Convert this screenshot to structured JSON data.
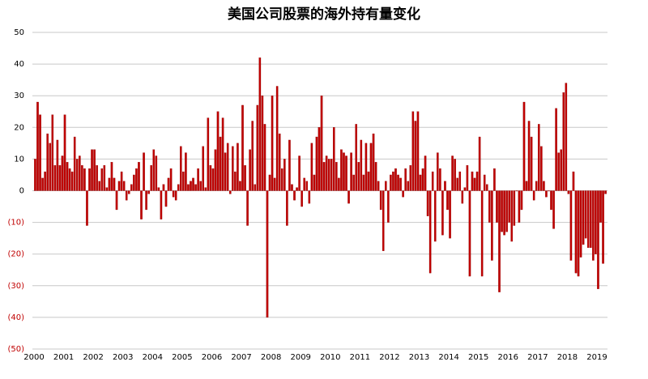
{
  "chart_data": {
    "type": "bar",
    "title": "美国公司股票的海外持有量变化",
    "categories": [
      "2000",
      null,
      null,
      null,
      null,
      null,
      null,
      null,
      null,
      null,
      null,
      null,
      "2001",
      null,
      null,
      null,
      null,
      null,
      null,
      null,
      null,
      null,
      null,
      null,
      "2002",
      null,
      null,
      null,
      null,
      null,
      null,
      null,
      null,
      null,
      null,
      null,
      "2003",
      null,
      null,
      null,
      null,
      null,
      null,
      null,
      null,
      null,
      null,
      null,
      "2004",
      null,
      null,
      null,
      null,
      null,
      null,
      null,
      null,
      null,
      null,
      null,
      "2005",
      null,
      null,
      null,
      null,
      null,
      null,
      null,
      null,
      null,
      null,
      null,
      "2006",
      null,
      null,
      null,
      null,
      null,
      null,
      null,
      null,
      null,
      null,
      null,
      "2007",
      null,
      null,
      null,
      null,
      null,
      null,
      null,
      null,
      null,
      null,
      null,
      "2008",
      null,
      null,
      null,
      null,
      null,
      null,
      null,
      null,
      null,
      null,
      null,
      "2009",
      null,
      null,
      null,
      null,
      null,
      null,
      null,
      null,
      null,
      null,
      null,
      "2010",
      null,
      null,
      null,
      null,
      null,
      null,
      null,
      null,
      null,
      null,
      null,
      "2011",
      null,
      null,
      null,
      null,
      null,
      null,
      null,
      null,
      null,
      null,
      null,
      "2012",
      null,
      null,
      null,
      null,
      null,
      null,
      null,
      null,
      null,
      null,
      null,
      "2013",
      null,
      null,
      null,
      null,
      null,
      null,
      null,
      null,
      null,
      null,
      null,
      "2014",
      null,
      null,
      null,
      null,
      null,
      null,
      null,
      null,
      null,
      null,
      null,
      "2015",
      null,
      null,
      null,
      null,
      null,
      null,
      null,
      null,
      null,
      null,
      null,
      "2016",
      null,
      null,
      null,
      null,
      null,
      null,
      null,
      null,
      null,
      null,
      null,
      "2017",
      null,
      null,
      null,
      null,
      null,
      null,
      null,
      null,
      null,
      null,
      null,
      "2018",
      null,
      null,
      null,
      null,
      null,
      null,
      null,
      null,
      null,
      null,
      null,
      "2019",
      null,
      null,
      null
    ],
    "values": [
      10,
      28,
      24,
      4,
      6,
      18,
      15,
      24,
      8,
      16,
      8,
      11,
      24,
      9,
      7,
      6,
      17,
      10,
      11,
      8,
      7,
      -11,
      7,
      13,
      13,
      8,
      3,
      7,
      8,
      1,
      4,
      9,
      4,
      -6,
      3,
      6,
      3,
      -3,
      -1,
      2,
      5,
      7,
      9,
      -9,
      12,
      -6,
      -1,
      8,
      13,
      11,
      1,
      -9,
      2,
      -5,
      4,
      7,
      -2,
      -3,
      2,
      14,
      6,
      12,
      2,
      3,
      4,
      2,
      7,
      3,
      14,
      1,
      23,
      8,
      7,
      13,
      25,
      17,
      23,
      12,
      15,
      -1,
      14,
      6,
      15,
      3,
      27,
      8,
      -11,
      13,
      22,
      2,
      27,
      42,
      30,
      21,
      -40,
      5,
      30,
      4,
      33,
      18,
      7,
      10,
      -11,
      16,
      2,
      -3,
      1,
      11,
      -5,
      4,
      3,
      -4,
      15,
      5,
      17,
      20,
      30,
      9,
      11,
      10,
      10,
      20,
      9,
      4,
      13,
      12,
      11,
      -4,
      12,
      5,
      21,
      9,
      16,
      5,
      15,
      6,
      15,
      18,
      9,
      3,
      -6,
      -19,
      3,
      -10,
      5,
      6,
      7,
      5,
      4,
      -2,
      7,
      3,
      8,
      25,
      22,
      25,
      5,
      7,
      11,
      -8,
      -26,
      6,
      -16,
      12,
      7,
      -14,
      3,
      -6,
      -15,
      11,
      10,
      4,
      6,
      -4,
      1,
      8,
      -27,
      6,
      4,
      6,
      17,
      -27,
      5,
      2,
      -10,
      -22,
      7,
      -10,
      -32,
      -13,
      -14,
      -13,
      -10,
      -16,
      -11,
      0,
      -10,
      -6,
      28,
      3,
      22,
      17,
      -3,
      3,
      21,
      14,
      3,
      -2,
      0,
      -6,
      -12,
      26,
      12,
      13,
      31,
      34,
      -1,
      -22,
      6,
      -26,
      -27,
      -21,
      -17,
      -15,
      -18,
      -18,
      -22,
      -20,
      -31,
      -10,
      -23,
      -1
    ],
    "color": "#c00000",
    "ylim": [
      -50,
      50
    ],
    "yticks": [
      {
        "value": -50,
        "label": "(50)"
      },
      {
        "value": -40,
        "label": "(40)"
      },
      {
        "value": -30,
        "label": "(30)"
      },
      {
        "value": -20,
        "label": "(20)"
      },
      {
        "value": -10,
        "label": "(10)"
      },
      0,
      10,
      20,
      30,
      40,
      50
    ],
    "negative_tick_color": "#c00000",
    "grid": true
  }
}
